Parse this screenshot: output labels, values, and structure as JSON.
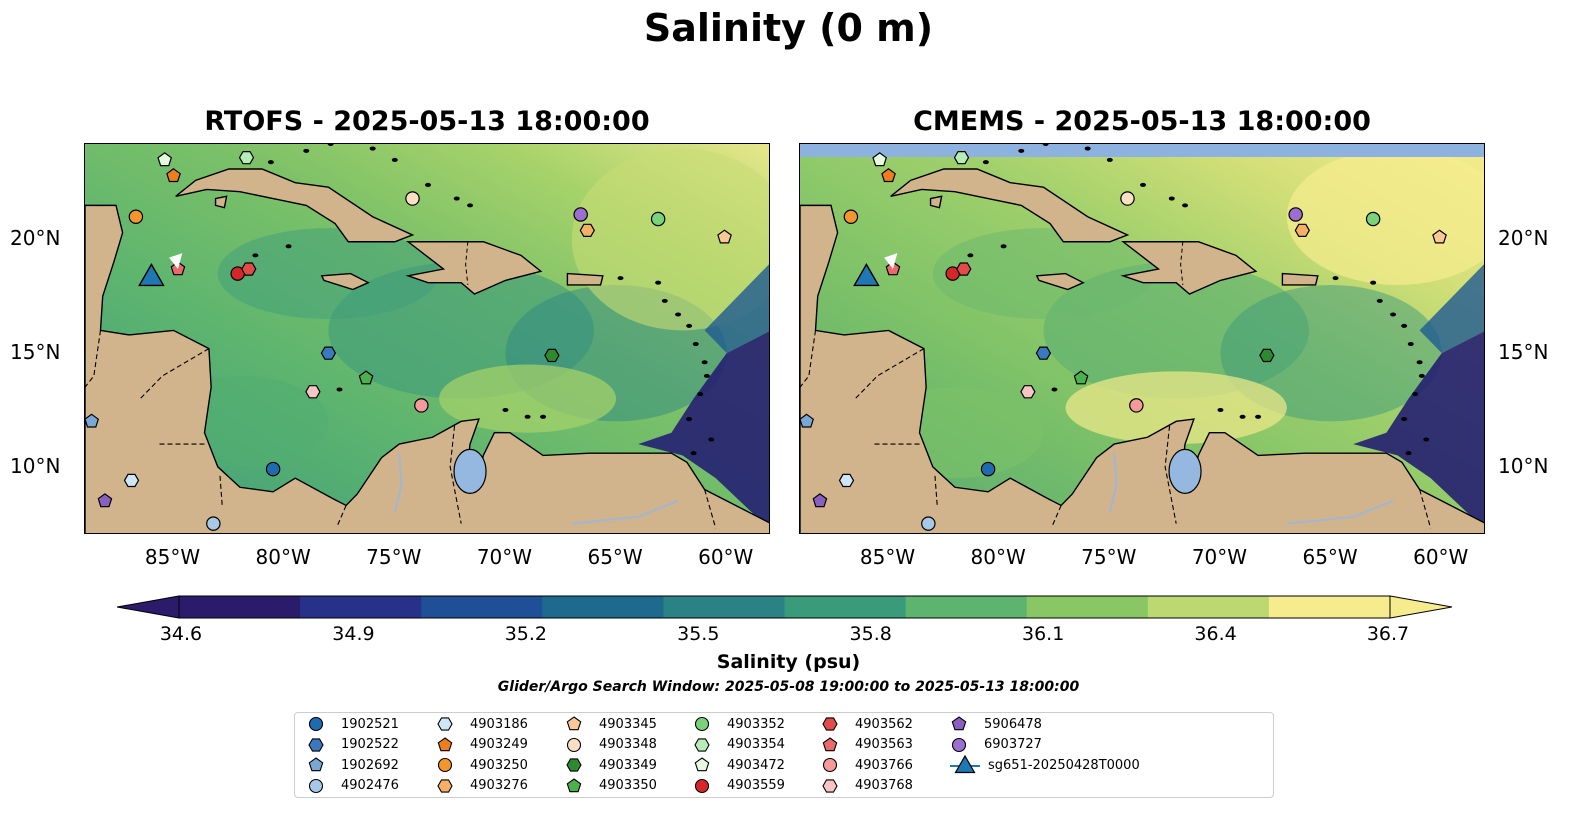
{
  "figure": {
    "suptitle": "Salinity (0 m)",
    "colorbar_label": "Salinity (psu)",
    "search_window": "Glider/Argo Search Window: 2025-05-08 19:00:00 to 2025-05-13 18:00:00"
  },
  "panels": [
    {
      "title": "RTOFS - 2025-05-13 18:00:00",
      "key": "rtofs"
    },
    {
      "title": "CMEMS - 2025-05-13 18:00:00",
      "key": "cmems"
    }
  ],
  "axes": {
    "lon_ticks": [
      {
        "lon": -85,
        "label": "85°W"
      },
      {
        "lon": -80,
        "label": "80°W"
      },
      {
        "lon": -75,
        "label": "75°W"
      },
      {
        "lon": -70,
        "label": "70°W"
      },
      {
        "lon": -65,
        "label": "65°W"
      },
      {
        "lon": -60,
        "label": "60°W"
      }
    ],
    "lat_ticks": [
      {
        "lat": 10,
        "label": "10°N"
      },
      {
        "lat": 15,
        "label": "15°N"
      },
      {
        "lat": 20,
        "label": "20°N"
      }
    ],
    "lon_range": [
      -89,
      -58
    ],
    "lat_range": [
      7,
      24.2
    ]
  },
  "colorbar": {
    "min": 34.6,
    "max": 36.7,
    "ticks": [
      "34.6",
      "34.9",
      "35.2",
      "35.5",
      "35.8",
      "36.1",
      "36.4",
      "36.7"
    ],
    "extend": "both",
    "colormap": "summer-viridis",
    "colors": [
      "#2a1c6b",
      "#27318a",
      "#1f4f96",
      "#1e6a8f",
      "#2a8285",
      "#3a9b7a",
      "#5cb46f",
      "#89c765",
      "#bcd871",
      "#f6ec8e"
    ]
  },
  "markers": [
    {
      "id": "1902521",
      "shape": "circle",
      "color": "#1f6bb0",
      "lon": -80.5,
      "lat": 9.9
    },
    {
      "id": "1902522",
      "shape": "hexagon",
      "color": "#3a78c0",
      "lon": -78,
      "lat": 15.0
    },
    {
      "id": "1902692",
      "shape": "pentagon",
      "color": "#7aa8d4",
      "lon": -88.7,
      "lat": 12.0
    },
    {
      "id": "4902476",
      "shape": "circle",
      "color": "#a8c8e8",
      "lon": -83.2,
      "lat": 7.5
    },
    {
      "id": "4903186",
      "shape": "hexagon",
      "color": "#cfe6f8",
      "lon": -86.9,
      "lat": 9.4
    },
    {
      "id": "4903249",
      "shape": "pentagon",
      "color": "#f07d1c",
      "lon": -85,
      "lat": 22.8
    },
    {
      "id": "4903250",
      "shape": "circle",
      "color": "#f5952e",
      "lon": -86.7,
      "lat": 21.0
    },
    {
      "id": "4903276",
      "shape": "hexagon",
      "color": "#f5b068",
      "lon": -66.3,
      "lat": 20.4
    },
    {
      "id": "4903345",
      "shape": "pentagon",
      "color": "#f8c898",
      "lon": -60.1,
      "lat": 20.1
    },
    {
      "id": "4903348",
      "shape": "circle",
      "color": "#fbe0c4",
      "lon": -74.2,
      "lat": 21.8
    },
    {
      "id": "4903349",
      "shape": "hexagon",
      "color": "#2e8a2e",
      "lon": -67.9,
      "lat": 14.9
    },
    {
      "id": "4903350",
      "shape": "pentagon",
      "color": "#4cb04c",
      "lon": -76.3,
      "lat": 13.9
    },
    {
      "id": "4903352",
      "shape": "circle",
      "color": "#7ad27a",
      "lon": -63.1,
      "lat": 20.9
    },
    {
      "id": "4903354",
      "shape": "hexagon",
      "color": "#b6ecb6",
      "lon": -81.7,
      "lat": 23.6
    },
    {
      "id": "4903472",
      "shape": "pentagon",
      "color": "#e4fbe0",
      "lon": -85.4,
      "lat": 23.5
    },
    {
      "id": "4903559",
      "shape": "circle",
      "color": "#d62728",
      "lon": -82.1,
      "lat": 18.5
    },
    {
      "id": "4903562",
      "shape": "hexagon",
      "color": "#e34a4a",
      "lon": -81.6,
      "lat": 18.7
    },
    {
      "id": "4903563",
      "shape": "pentagon",
      "color": "#ea6a6a",
      "lon": -84.8,
      "lat": 18.7
    },
    {
      "id": "4903766",
      "shape": "circle",
      "color": "#f49a9a",
      "lon": -73.8,
      "lat": 12.7
    },
    {
      "id": "4903768",
      "shape": "hexagon",
      "color": "#f8c4c4",
      "lon": -78.7,
      "lat": 13.3
    },
    {
      "id": "5906478",
      "shape": "pentagon",
      "color": "#8b5fbf",
      "lon": -88.1,
      "lat": 8.5
    },
    {
      "id": "6903727",
      "shape": "circle",
      "color": "#9b6fd0",
      "lon": -66.6,
      "lat": 21.1
    }
  ],
  "glider": {
    "id": "sg651-20250428T0000",
    "shape": "triangle",
    "color": "#1f77b4",
    "lon": -86,
    "lat": 18.2
  }
}
